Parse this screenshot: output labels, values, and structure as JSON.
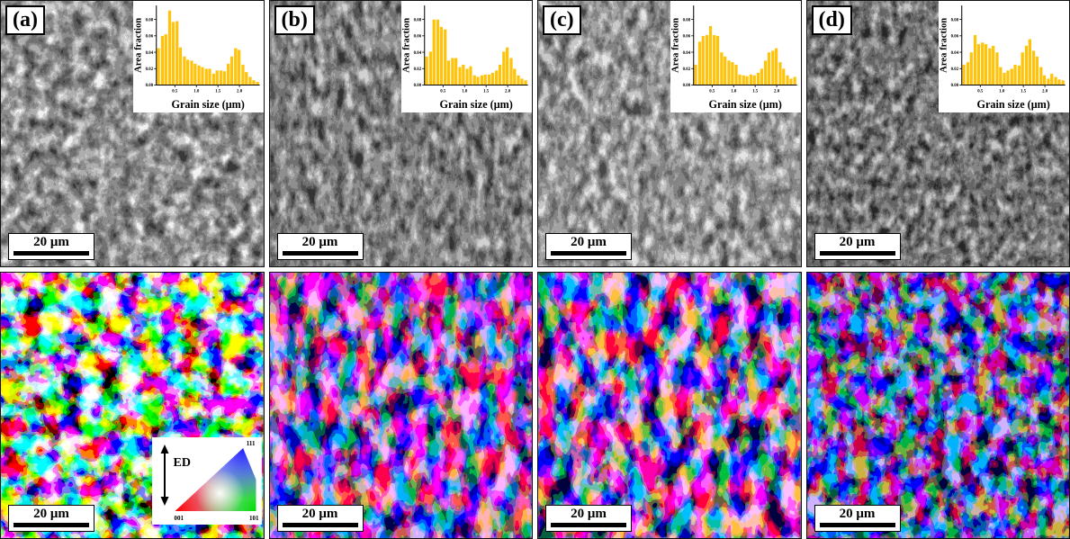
{
  "figure": {
    "panels": [
      {
        "label": "(a)"
      },
      {
        "label": "(b)"
      },
      {
        "label": "(c)"
      },
      {
        "label": "(d)"
      }
    ],
    "scale_bar": "20 μm",
    "legend": {
      "ed_label": "ED",
      "corners": {
        "c001": "001",
        "c101": "101",
        "c111": "111"
      }
    }
  },
  "colors": {
    "histogram_bar": "#FFC30B",
    "axis": "#000000",
    "scalebar_bg": "#FFFFFF",
    "label_bg": "#FFFFFF"
  },
  "chart_data": [
    {
      "type": "bar",
      "panel": "(a)",
      "title": "",
      "xlabel": "Grain size (μm)",
      "ylabel": "Area fraction",
      "xlim": [
        0.07,
        2.47
      ],
      "ylim": [
        0,
        0.097
      ],
      "xticks": [
        0.5,
        1.0,
        1.5,
        2.0
      ],
      "yticks": [
        0.0,
        0.02,
        0.04,
        0.06,
        0.08
      ],
      "bin_width": 0.085,
      "x": [
        0.12,
        0.21,
        0.29,
        0.38,
        0.46,
        0.55,
        0.63,
        0.72,
        0.8,
        0.89,
        0.97,
        1.06,
        1.14,
        1.23,
        1.31,
        1.4,
        1.48,
        1.57,
        1.65,
        1.74,
        1.82,
        1.91,
        1.99,
        2.08,
        2.16,
        2.25,
        2.33,
        2.42
      ],
      "values": [
        0.045,
        0.06,
        0.062,
        0.091,
        0.077,
        0.078,
        0.046,
        0.035,
        0.031,
        0.03,
        0.026,
        0.024,
        0.022,
        0.02,
        0.02,
        0.014,
        0.018,
        0.018,
        0.017,
        0.026,
        0.035,
        0.045,
        0.043,
        0.025,
        0.016,
        0.01,
        0.006,
        0.004
      ]
    },
    {
      "type": "bar",
      "panel": "(b)",
      "title": "",
      "xlabel": "Grain size (μm)",
      "ylabel": "Area fraction",
      "xlim": [
        0.07,
        2.47
      ],
      "ylim": [
        0,
        0.097
      ],
      "xticks": [
        0.5,
        1.0,
        1.5,
        2.0
      ],
      "yticks": [
        0.0,
        0.02,
        0.04,
        0.06,
        0.08
      ],
      "bin_width": 0.085,
      "x": [
        0.12,
        0.21,
        0.29,
        0.38,
        0.46,
        0.55,
        0.63,
        0.72,
        0.8,
        0.89,
        0.97,
        1.06,
        1.14,
        1.23,
        1.31,
        1.4,
        1.48,
        1.57,
        1.65,
        1.74,
        1.82,
        1.91,
        1.99,
        2.08,
        2.16,
        2.25,
        2.33,
        2.42
      ],
      "values": [
        0.035,
        0.041,
        0.08,
        0.08,
        0.071,
        0.068,
        0.03,
        0.033,
        0.033,
        0.022,
        0.025,
        0.02,
        0.023,
        0.012,
        0.01,
        0.012,
        0.013,
        0.013,
        0.015,
        0.018,
        0.025,
        0.041,
        0.046,
        0.033,
        0.02,
        0.012,
        0.008,
        0.006
      ]
    },
    {
      "type": "bar",
      "panel": "(c)",
      "title": "",
      "xlabel": "Grain size (μm)",
      "ylabel": "Area fraction",
      "xlim": [
        0.07,
        2.47
      ],
      "ylim": [
        0,
        0.097
      ],
      "xticks": [
        0.5,
        1.0,
        1.5,
        2.0
      ],
      "yticks": [
        0.0,
        0.02,
        0.04,
        0.06,
        0.08
      ],
      "bin_width": 0.085,
      "x": [
        0.12,
        0.21,
        0.29,
        0.38,
        0.46,
        0.55,
        0.63,
        0.72,
        0.8,
        0.89,
        0.97,
        1.06,
        1.14,
        1.23,
        1.31,
        1.4,
        1.48,
        1.57,
        1.65,
        1.74,
        1.82,
        1.91,
        1.99,
        2.08,
        2.16,
        2.25,
        2.33,
        2.42
      ],
      "values": [
        0.025,
        0.053,
        0.06,
        0.061,
        0.072,
        0.061,
        0.06,
        0.04,
        0.035,
        0.03,
        0.028,
        0.025,
        0.013,
        0.012,
        0.011,
        0.013,
        0.012,
        0.015,
        0.02,
        0.03,
        0.04,
        0.042,
        0.045,
        0.028,
        0.02,
        0.012,
        0.008,
        0.01
      ]
    },
    {
      "type": "bar",
      "panel": "(d)",
      "title": "",
      "xlabel": "Grain size (μm)",
      "ylabel": "Area fraction",
      "xlim": [
        0.07,
        2.47
      ],
      "ylim": [
        0,
        0.097
      ],
      "xticks": [
        0.5,
        1.0,
        1.5,
        2.0
      ],
      "yticks": [
        0.0,
        0.02,
        0.04,
        0.06,
        0.08
      ],
      "bin_width": 0.085,
      "x": [
        0.12,
        0.21,
        0.29,
        0.38,
        0.46,
        0.55,
        0.63,
        0.72,
        0.8,
        0.89,
        0.97,
        1.06,
        1.14,
        1.23,
        1.31,
        1.4,
        1.48,
        1.57,
        1.65,
        1.74,
        1.82,
        1.91,
        1.99,
        2.08,
        2.16,
        2.25,
        2.33,
        2.42
      ],
      "values": [
        0.025,
        0.028,
        0.04,
        0.061,
        0.05,
        0.052,
        0.05,
        0.045,
        0.048,
        0.04,
        0.022,
        0.015,
        0.018,
        0.02,
        0.025,
        0.024,
        0.04,
        0.048,
        0.056,
        0.042,
        0.035,
        0.022,
        0.012,
        0.008,
        0.014,
        0.01,
        0.007,
        0.006
      ]
    }
  ]
}
